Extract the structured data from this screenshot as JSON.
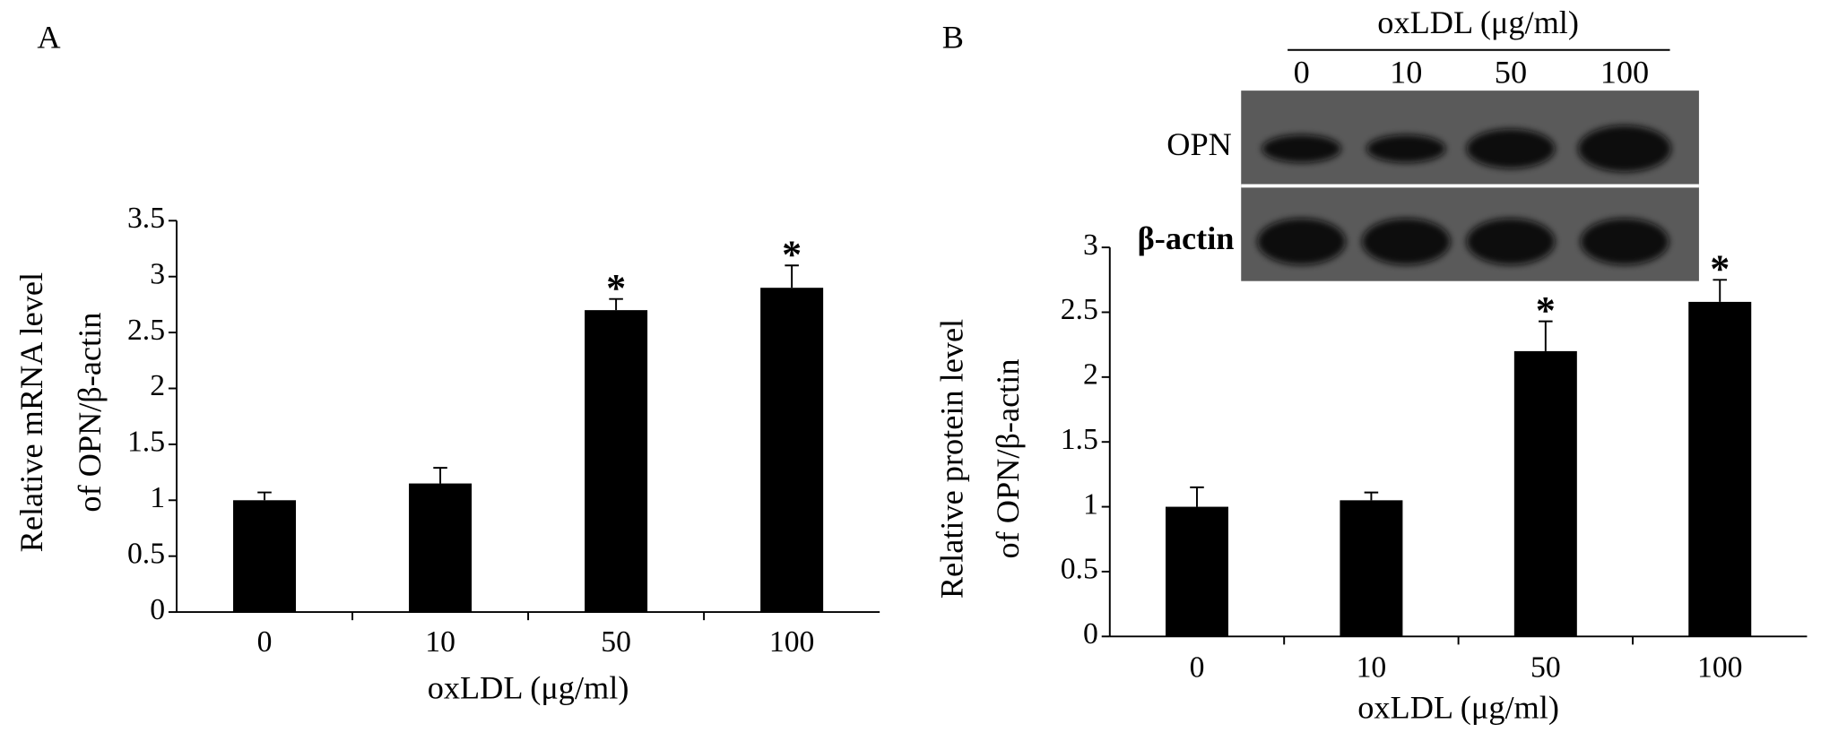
{
  "chart_data": [
    {
      "type": "bar",
      "panel_label": "A",
      "categories": [
        "0",
        "10",
        "50",
        "100"
      ],
      "values": [
        1,
        1.15,
        2.7,
        2.9
      ],
      "errors": [
        0.07,
        0.14,
        0.1,
        0.2
      ],
      "significance": [
        null,
        null,
        "*",
        "*"
      ],
      "xlabel": "oxLDL (μg/ml)",
      "ylabel": [
        "Relative mRNA level",
        "of OPN/β-actin"
      ],
      "ylim": [
        0,
        3.5
      ],
      "yticks": [
        0,
        0.5,
        1,
        1.5,
        2,
        2.5,
        3,
        3.5
      ],
      "color": "#000000"
    },
    {
      "type": "bar",
      "panel_label": "B",
      "categories": [
        "0",
        "10",
        "50",
        "100"
      ],
      "values": [
        1,
        1.05,
        2.2,
        2.58
      ],
      "errors": [
        0.15,
        0.06,
        0.23,
        0.17
      ],
      "significance": [
        null,
        null,
        "*",
        "*"
      ],
      "xlabel": "oxLDL (μg/ml)",
      "ylabel": [
        "Relative protein level",
        "of OPN/β-actin"
      ],
      "ylim": [
        0,
        3
      ],
      "yticks": [
        0,
        0.5,
        1,
        1.5,
        2,
        2.5,
        3
      ],
      "color": "#000000",
      "blot": {
        "title": "oxLDL (μg/ml)",
        "lanes": [
          "0",
          "10",
          "50",
          "100"
        ],
        "rows": [
          "OPN",
          "β-actin"
        ]
      }
    }
  ]
}
